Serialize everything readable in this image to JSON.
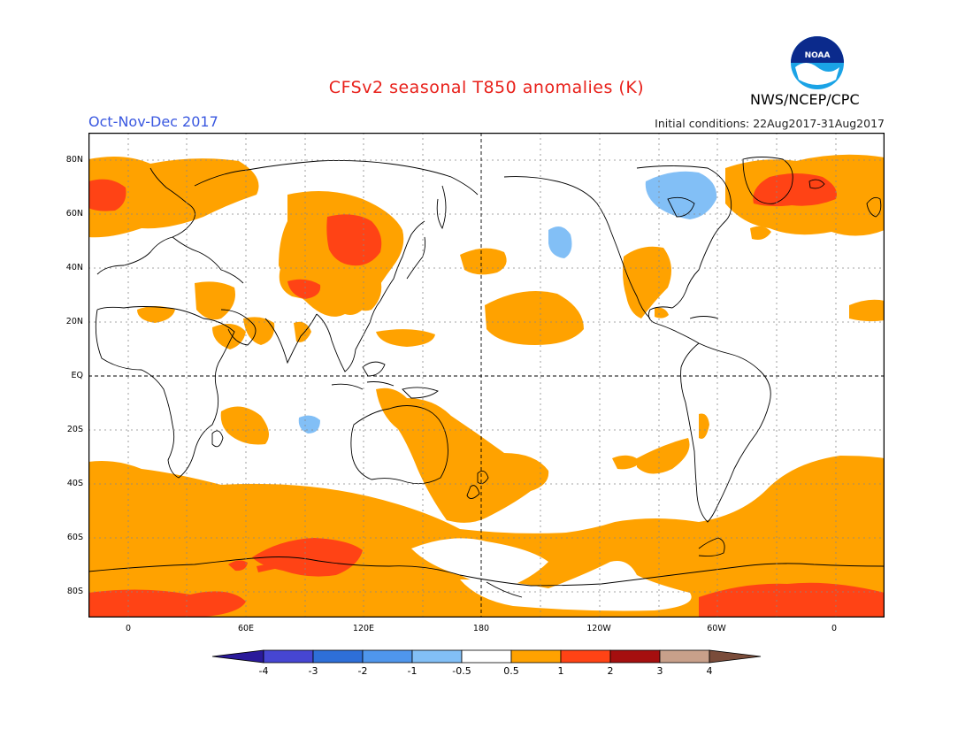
{
  "title": "CFSv2 seasonal T850 anomalies (K)",
  "season": "Oct-Nov-Dec 2017",
  "initial_conditions": "Initial conditions: 22Aug2017-31Aug2017",
  "agency": "NWS/NCEP/CPC",
  "logo_text": "NOAA",
  "logo_icon": "noaa-logo",
  "lat_labels": [
    "80N",
    "60N",
    "40N",
    "20N",
    "EQ",
    "20S",
    "40S",
    "60S",
    "80S"
  ],
  "lon_labels": [
    "0",
    "60E",
    "120E",
    "180",
    "120W",
    "60W",
    "0"
  ],
  "colorbar": {
    "unit": "K",
    "ticks": [
      "-4",
      "-3",
      "-2",
      "-1",
      "-0.5",
      "0.5",
      "1",
      "2",
      "3",
      "4"
    ],
    "colors": [
      "#2a1a9a",
      "#4646d2",
      "#2e6fd8",
      "#4f96ec",
      "#82bff6",
      "#ffffff",
      "#ffa200",
      "#ff4315",
      "#a50f0f",
      "#c8a08a",
      "#7a4c3a"
    ]
  },
  "map_colors": {
    "warm_05_1": "#ffa200",
    "warm_1_2": "#ff4315",
    "cool_05_1": "#82bff6",
    "coast": "#000000",
    "grid": "#888888"
  }
}
